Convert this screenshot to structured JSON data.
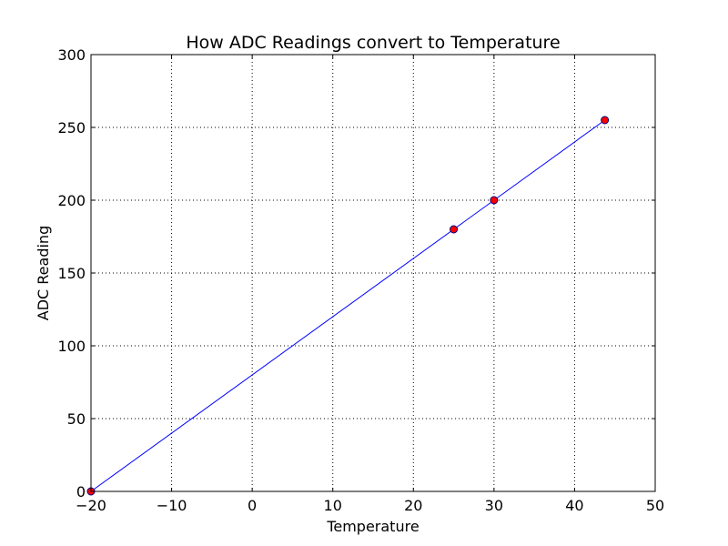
{
  "chart_data": {
    "type": "line",
    "title": "How ADC Readings convert to Temperature",
    "xlabel": "Temperature",
    "ylabel": "ADC Reading",
    "xlim": [
      -20,
      50
    ],
    "ylim": [
      0,
      300
    ],
    "xticks": [
      -20,
      -10,
      0,
      10,
      20,
      30,
      40,
      50
    ],
    "yticks": [
      0,
      50,
      100,
      150,
      200,
      250,
      300
    ],
    "xtick_labels": [
      "−20",
      "−10",
      "0",
      "10",
      "20",
      "30",
      "40",
      "50"
    ],
    "ytick_labels": [
      "0",
      "50",
      "100",
      "150",
      "200",
      "250",
      "300"
    ],
    "grid": true,
    "series": [
      {
        "style": "line",
        "color": "#0000ff",
        "x": [
          -20,
          43.75
        ],
        "y": [
          0,
          255
        ]
      },
      {
        "style": "markers",
        "color": "#ff0000",
        "edge_color": "#000080",
        "x": [
          -20,
          25,
          30,
          43.75
        ],
        "y": [
          0,
          180,
          200,
          255
        ]
      }
    ]
  }
}
